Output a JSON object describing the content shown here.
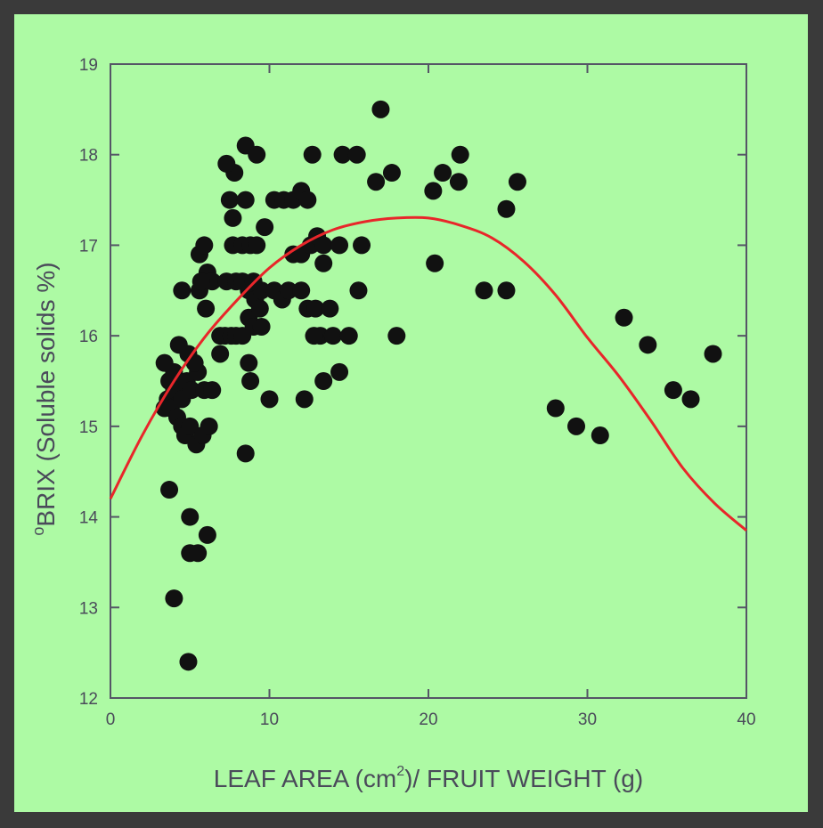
{
  "chart_data": {
    "type": "scatter",
    "xlabel_parts": [
      "LEAF AREA (cm",
      "2",
      ")/ FRUIT WEIGHT (g)"
    ],
    "ylabel_parts": [
      "o",
      "BRIX (Soluble solids %)"
    ],
    "xlim": [
      0,
      40
    ],
    "ylim": [
      12,
      19
    ],
    "x_ticks": [
      0,
      10,
      20,
      30,
      40
    ],
    "y_ticks": [
      12,
      13,
      14,
      15,
      16,
      17,
      18,
      19
    ],
    "colors": {
      "points": "#111111",
      "fit_curve": "#e8262a",
      "axes": "#555566"
    },
    "points": [
      [
        4.9,
        12.4
      ],
      [
        4.0,
        13.1
      ],
      [
        5.0,
        13.6
      ],
      [
        5.5,
        13.6
      ],
      [
        6.1,
        13.8
      ],
      [
        5.0,
        14.0
      ],
      [
        3.7,
        14.3
      ],
      [
        3.4,
        15.2
      ],
      [
        3.6,
        15.3
      ],
      [
        3.8,
        15.2
      ],
      [
        4.0,
        15.4
      ],
      [
        4.2,
        15.1
      ],
      [
        4.5,
        15.0
      ],
      [
        4.7,
        14.9
      ],
      [
        5.0,
        15.0
      ],
      [
        5.4,
        14.8
      ],
      [
        5.8,
        14.9
      ],
      [
        6.2,
        15.0
      ],
      [
        3.4,
        15.7
      ],
      [
        3.7,
        15.5
      ],
      [
        4.0,
        15.6
      ],
      [
        4.2,
        15.4
      ],
      [
        4.5,
        15.3
      ],
      [
        4.8,
        15.5
      ],
      [
        5.1,
        15.4
      ],
      [
        5.5,
        15.6
      ],
      [
        5.9,
        15.4
      ],
      [
        6.4,
        15.4
      ],
      [
        4.3,
        15.9
      ],
      [
        4.9,
        15.8
      ],
      [
        5.3,
        15.7
      ],
      [
        4.5,
        16.5
      ],
      [
        5.6,
        16.5
      ],
      [
        6.0,
        16.3
      ],
      [
        5.6,
        16.9
      ],
      [
        5.9,
        17.0
      ],
      [
        6.1,
        16.7
      ],
      [
        6.4,
        16.6
      ],
      [
        5.7,
        16.6
      ],
      [
        6.9,
        16.0
      ],
      [
        6.9,
        15.8
      ],
      [
        7.2,
        16.0
      ],
      [
        7.6,
        16.0
      ],
      [
        7.9,
        16.0
      ],
      [
        8.3,
        16.0
      ],
      [
        8.7,
        16.2
      ],
      [
        9.0,
        16.1
      ],
      [
        9.5,
        16.1
      ],
      [
        8.7,
        15.7
      ],
      [
        8.8,
        15.5
      ],
      [
        8.5,
        14.7
      ],
      [
        7.3,
        16.6
      ],
      [
        7.9,
        16.6
      ],
      [
        8.3,
        16.6
      ],
      [
        8.7,
        16.5
      ],
      [
        9.1,
        16.4
      ],
      [
        9.5,
        16.5
      ],
      [
        9.0,
        16.6
      ],
      [
        9.4,
        16.3
      ],
      [
        7.7,
        17.0
      ],
      [
        8.3,
        17.0
      ],
      [
        8.8,
        17.0
      ],
      [
        9.2,
        17.0
      ],
      [
        9.7,
        17.2
      ],
      [
        7.7,
        17.3
      ],
      [
        7.5,
        17.5
      ],
      [
        8.5,
        17.5
      ],
      [
        7.8,
        17.8
      ],
      [
        7.3,
        17.9
      ],
      [
        8.5,
        18.1
      ],
      [
        9.2,
        18.0
      ],
      [
        10.3,
        16.5
      ],
      [
        10.8,
        16.4
      ],
      [
        11.2,
        16.5
      ],
      [
        10.3,
        17.5
      ],
      [
        10.9,
        17.5
      ],
      [
        11.5,
        17.5
      ],
      [
        12.0,
        17.6
      ],
      [
        12.4,
        17.5
      ],
      [
        12.0,
        16.5
      ],
      [
        12.4,
        16.3
      ],
      [
        12.9,
        16.3
      ],
      [
        13.2,
        16.0
      ],
      [
        13.8,
        16.3
      ],
      [
        12.8,
        16.0
      ],
      [
        14.0,
        16.0
      ],
      [
        15.0,
        16.0
      ],
      [
        10.0,
        15.3
      ],
      [
        12.2,
        15.3
      ],
      [
        13.4,
        15.5
      ],
      [
        14.4,
        15.6
      ],
      [
        11.5,
        16.9
      ],
      [
        12.0,
        16.9
      ],
      [
        12.6,
        17.0
      ],
      [
        13.0,
        17.1
      ],
      [
        13.4,
        17.0
      ],
      [
        13.4,
        16.8
      ],
      [
        14.4,
        17.0
      ],
      [
        15.8,
        17.0
      ],
      [
        15.6,
        16.5
      ],
      [
        12.7,
        18.0
      ],
      [
        14.6,
        18.0
      ],
      [
        15.5,
        18.0
      ],
      [
        16.7,
        17.7
      ],
      [
        17.7,
        17.8
      ],
      [
        17.0,
        18.5
      ],
      [
        18.0,
        16.0
      ],
      [
        20.3,
        17.6
      ],
      [
        20.9,
        17.8
      ],
      [
        21.9,
        17.7
      ],
      [
        22.0,
        18.0
      ],
      [
        20.4,
        16.8
      ],
      [
        23.5,
        16.5
      ],
      [
        24.9,
        16.5
      ],
      [
        24.9,
        17.4
      ],
      [
        25.6,
        17.7
      ],
      [
        28.0,
        15.2
      ],
      [
        29.3,
        15.0
      ],
      [
        30.8,
        14.9
      ],
      [
        32.3,
        16.2
      ],
      [
        33.8,
        15.9
      ],
      [
        35.4,
        15.4
      ],
      [
        36.5,
        15.3
      ],
      [
        37.9,
        15.8
      ]
    ],
    "fit_curve": [
      [
        0,
        14.2
      ],
      [
        2,
        14.9
      ],
      [
        4,
        15.5
      ],
      [
        6,
        16.0
      ],
      [
        8,
        16.4
      ],
      [
        10,
        16.75
      ],
      [
        12,
        17.0
      ],
      [
        14,
        17.17
      ],
      [
        16,
        17.26
      ],
      [
        18,
        17.3
      ],
      [
        20,
        17.3
      ],
      [
        22,
        17.22
      ],
      [
        24,
        17.08
      ],
      [
        26,
        16.82
      ],
      [
        28,
        16.45
      ],
      [
        30,
        15.98
      ],
      [
        32,
        15.55
      ],
      [
        34,
        15.06
      ],
      [
        36,
        14.54
      ],
      [
        38,
        14.15
      ],
      [
        40,
        13.85
      ]
    ]
  }
}
